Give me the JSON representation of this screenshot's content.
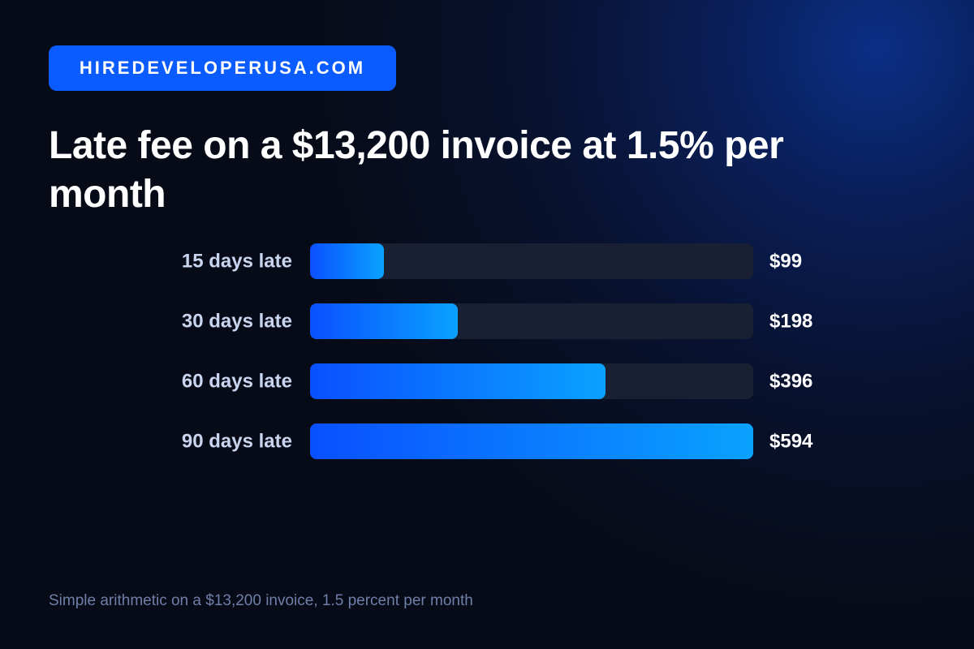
{
  "chart_data": {
    "type": "bar",
    "brand": "HIREDEVELOPERUSA.COM",
    "title": "Late fee on a $13,200 invoice at 1.5% per month",
    "categories": [
      "15 days late",
      "30 days late",
      "60 days late",
      "90 days late"
    ],
    "values": [
      99,
      198,
      396,
      594
    ],
    "value_labels": [
      "$99",
      "$198",
      "$396",
      "$594"
    ],
    "xlim": [
      0,
      594
    ],
    "colors": [
      "#0a50ff",
      "#0aa2ff"
    ],
    "note": "Simple arithmetic on a $13,200 invoice, 1.5 percent per month"
  }
}
